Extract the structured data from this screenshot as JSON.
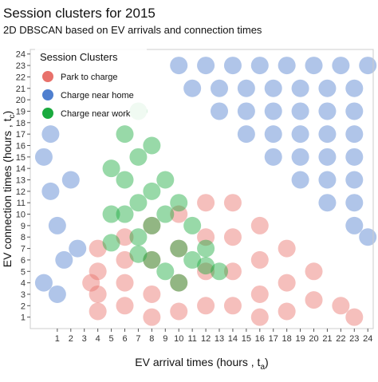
{
  "chart_data": {
    "type": "scatter",
    "title": "Session clusters for 2015",
    "subtitle": "2D DBSCAN based on EV arrivals and connection times",
    "xlabel": {
      "text": "EV arrival times (hours , t",
      "subscript": "a",
      "suffix": ")"
    },
    "ylabel": {
      "text": "EV connection times (hours , t",
      "subscript": "c",
      "suffix": ")"
    },
    "legend_title": "Session Clusters",
    "legend_position": "top-left",
    "xlim": [
      -1,
      24.4
    ],
    "ylim": [
      0,
      24.4
    ],
    "xticks": [
      1,
      2,
      3,
      4,
      5,
      6,
      7,
      8,
      9,
      10,
      11,
      12,
      13,
      14,
      15,
      16,
      17,
      18,
      19,
      20,
      21,
      22,
      23,
      24
    ],
    "yticks": [
      1,
      2,
      3,
      4,
      5,
      6,
      7,
      8,
      9,
      10,
      11,
      12,
      13,
      14,
      15,
      16,
      17,
      18,
      19,
      20,
      21,
      22,
      23,
      24
    ],
    "series": [
      {
        "name": "Charge near home",
        "color": "#4f7fcf",
        "x": [
          10,
          12,
          14,
          16,
          18,
          20,
          22,
          24,
          11,
          13,
          15,
          17,
          19,
          21,
          23,
          13,
          15,
          17,
          19,
          21,
          23,
          15,
          17,
          19,
          21,
          23,
          17,
          19,
          21,
          23,
          19,
          21,
          23,
          21,
          23,
          23,
          24,
          0,
          0.5,
          1,
          1.5,
          0,
          2,
          2.5,
          1,
          0.5
        ],
        "y": [
          23,
          23,
          23,
          23,
          23,
          23,
          23,
          23,
          21,
          21,
          21,
          21,
          21,
          21,
          21,
          19,
          19,
          19,
          19,
          19,
          19,
          17,
          17,
          17,
          17,
          17,
          15,
          15,
          15,
          15,
          13,
          13,
          13,
          11,
          11,
          9,
          8,
          15,
          12,
          9,
          6,
          4,
          13,
          7,
          3,
          17
        ]
      },
      {
        "name": "Park to charge",
        "color": "#e8716b",
        "x": [
          4,
          4,
          4,
          4,
          6,
          6,
          6,
          6,
          8,
          8,
          8,
          8,
          10,
          10,
          10,
          10,
          12,
          12,
          12,
          12,
          14,
          14,
          14,
          14,
          16,
          16,
          16,
          16,
          18,
          18,
          18,
          20,
          20,
          22,
          23,
          3.5
        ],
        "y": [
          7,
          5,
          3,
          1.5,
          8,
          6,
          4,
          2,
          9,
          6,
          3,
          1,
          10,
          7,
          4,
          1.5,
          11,
          8,
          5,
          2,
          11,
          8,
          5,
          2,
          9,
          6,
          3,
          1,
          7,
          4,
          1.5,
          5,
          2.5,
          2,
          1,
          4
        ]
      },
      {
        "name": "Charge near work",
        "color": "#1aaa3e",
        "x": [
          5,
          6,
          7,
          6,
          7,
          8,
          5,
          6,
          7,
          8,
          9,
          5,
          7,
          8,
          9,
          10,
          11,
          8,
          9,
          10,
          11,
          12,
          13,
          10,
          12,
          7
        ],
        "y": [
          14,
          17,
          19,
          13,
          15,
          16,
          10,
          10,
          11,
          12,
          13,
          7.5,
          8,
          9,
          10,
          11,
          9,
          6,
          5,
          7,
          6,
          7,
          5,
          4,
          5.5,
          6.5
        ]
      }
    ],
    "legend_order": [
      1,
      0,
      2
    ]
  }
}
